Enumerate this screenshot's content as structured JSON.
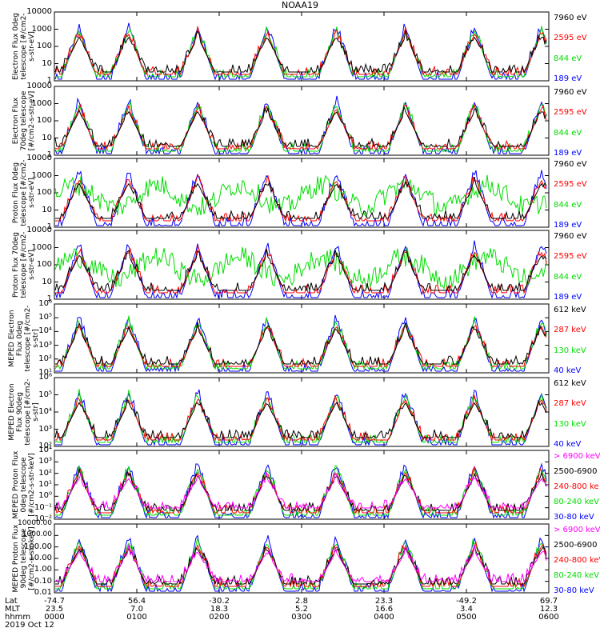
{
  "title": "NOAA19",
  "date": "2019 Oct 12",
  "colors": {
    "black": "#000000",
    "red": "#ff0000",
    "green": "#00dd00",
    "blue": "#0000ff",
    "magenta": "#ff00ff"
  },
  "xaxis": {
    "row_labels": [
      "Lat",
      "MLT",
      "hhmm"
    ],
    "ticks": [
      {
        "lat": "-74.7",
        "mlt": "23.5",
        "hhmm": "0000"
      },
      {
        "lat": "56.4",
        "mlt": "7.0",
        "hhmm": "0100"
      },
      {
        "lat": "-30.2",
        "mlt": "18.3",
        "hhmm": "0200"
      },
      {
        "lat": "2.8",
        "mlt": "5.2",
        "hhmm": "0300"
      },
      {
        "lat": "23.3",
        "mlt": "16.6",
        "hhmm": "0400"
      },
      {
        "lat": "-49.2",
        "mlt": "3.4",
        "hhmm": "0500"
      },
      {
        "lat": "69.7",
        "mlt": "12.3",
        "hhmm": "0600"
      }
    ]
  },
  "chart_data": [
    {
      "type": "line",
      "panel": 1,
      "ylabel": "Electron Flux 0deg telescope [#/cm2-s-str-eV]",
      "yticks": [
        "1",
        "10",
        "100",
        "1000",
        "10000"
      ],
      "legend": [
        {
          "text": "7960 eV",
          "color": "black"
        },
        {
          "text": "2595 eV",
          "color": "red"
        },
        {
          "text": "844 eV",
          "color": "green"
        },
        {
          "text": "189 eV",
          "color": "blue"
        }
      ]
    },
    {
      "type": "line",
      "panel": 2,
      "ylabel": "Electron Flux 70deg telescope [#/cm2-s-str-eV]",
      "yticks": [
        "1",
        "10",
        "100",
        "1000",
        "10000"
      ],
      "legend": [
        {
          "text": "7960 eV",
          "color": "black"
        },
        {
          "text": "2595 eV",
          "color": "red"
        },
        {
          "text": "844 eV",
          "color": "green"
        },
        {
          "text": "189 eV",
          "color": "blue"
        }
      ]
    },
    {
      "type": "line",
      "panel": 3,
      "ylabel": "Proton Flux 0deg telescope [#/cm2-s-str-eV]",
      "yticks": [
        "1",
        "10",
        "100",
        "1000",
        "10000"
      ],
      "legend": [
        {
          "text": "7960 eV",
          "color": "black"
        },
        {
          "text": "2595 eV",
          "color": "red"
        },
        {
          "text": "844 eV",
          "color": "green"
        },
        {
          "text": "189 eV",
          "color": "blue"
        }
      ]
    },
    {
      "type": "line",
      "panel": 4,
      "ylabel": "Proton Flux 70deg telescope [#/cm2-s-str-eV]",
      "yticks": [
        "1",
        "10",
        "100",
        "1000",
        "10000"
      ],
      "legend": [
        {
          "text": "7960 eV",
          "color": "black"
        },
        {
          "text": "2595 eV",
          "color": "red"
        },
        {
          "text": "844 eV",
          "color": "green"
        },
        {
          "text": "189 eV",
          "color": "blue"
        }
      ]
    },
    {
      "type": "line",
      "panel": 5,
      "ylabel": "MEPED Electron Flux 0deg telescope [#/cm2-s-str]",
      "yticks": [
        "10¹",
        "10²",
        "10³",
        "10⁴",
        "10⁵",
        "10⁶"
      ],
      "legend": [
        {
          "text": "612 keV",
          "color": "black"
        },
        {
          "text": "287 keV",
          "color": "red"
        },
        {
          "text": "130 keV",
          "color": "green"
        },
        {
          "text": "40 keV",
          "color": "blue"
        }
      ]
    },
    {
      "type": "line",
      "panel": 6,
      "ylabel": "MEPED Electron Flux 90deg telescope [#/cm2-s-str]",
      "yticks": [
        "10²",
        "10³",
        "10⁴",
        "10⁵",
        "10⁶"
      ],
      "legend": [
        {
          "text": "612 keV",
          "color": "black"
        },
        {
          "text": "287 keV",
          "color": "red"
        },
        {
          "text": "130 keV",
          "color": "green"
        },
        {
          "text": "40 keV",
          "color": "blue"
        }
      ]
    },
    {
      "type": "line",
      "panel": 7,
      "ylabel": "MEPED Proton Flux 0deg telescope [#/cm2-s-str-keV]",
      "yticks": [
        "10⁻²",
        "10⁻¹",
        "10⁰",
        "10¹",
        "10²",
        "10³",
        "10⁴"
      ],
      "legend": [
        {
          "text": "> 6900 keV",
          "color": "magenta"
        },
        {
          "text": "2500-6900",
          "color": "black"
        },
        {
          "text": "240-800 ke",
          "color": "red"
        },
        {
          "text": "80-240 keV",
          "color": "green"
        },
        {
          "text": "30-80 keV",
          "color": "blue"
        }
      ]
    },
    {
      "type": "line",
      "panel": 8,
      "ylabel": "MEPED Proton Flux 90deg telescope [#/cm2-s-str-keV]",
      "yticks": [
        "0.01",
        "0.10",
        "1.00",
        "10.00",
        "100.00",
        "1000.00",
        "10000.00"
      ],
      "legend": [
        {
          "text": "> 6900 keV",
          "color": "magenta"
        },
        {
          "text": "2500-6900",
          "color": "black"
        },
        {
          "text": "240-800 keV",
          "color": "red"
        },
        {
          "text": "80-240 keV",
          "color": "green"
        },
        {
          "text": "30-80 keV",
          "color": "blue"
        }
      ]
    }
  ]
}
